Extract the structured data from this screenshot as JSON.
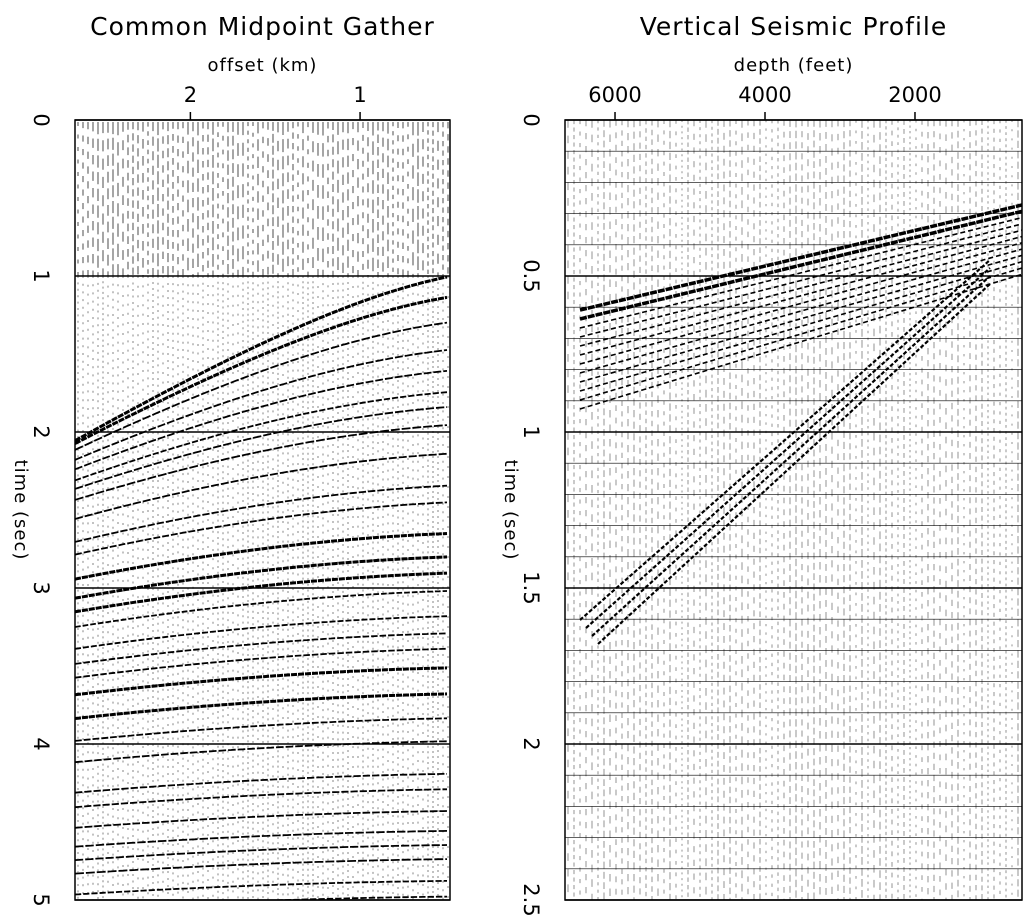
{
  "chart_data": [
    {
      "type": "seismic",
      "title": "Common Midpoint Gather",
      "x_label": "offset (km)",
      "y_label": "time (sec)",
      "xlim": [
        2.68,
        0.47
      ],
      "xticks": [
        2,
        1
      ],
      "ylim": [
        0,
        5
      ],
      "yticks": [
        0,
        1,
        2,
        3,
        4,
        5
      ],
      "grid": true
    },
    {
      "type": "seismic",
      "title": "Vertical Seismic Profile",
      "x_label": "depth (feet)",
      "y_label": "time (sec)",
      "xlim": [
        6667,
        573
      ],
      "xticks": [
        6000,
        4000,
        2000
      ],
      "ylim": [
        0,
        2.5
      ],
      "yticks": [
        0,
        0.5,
        1,
        1.5,
        2,
        2.5
      ],
      "grid": true
    }
  ]
}
